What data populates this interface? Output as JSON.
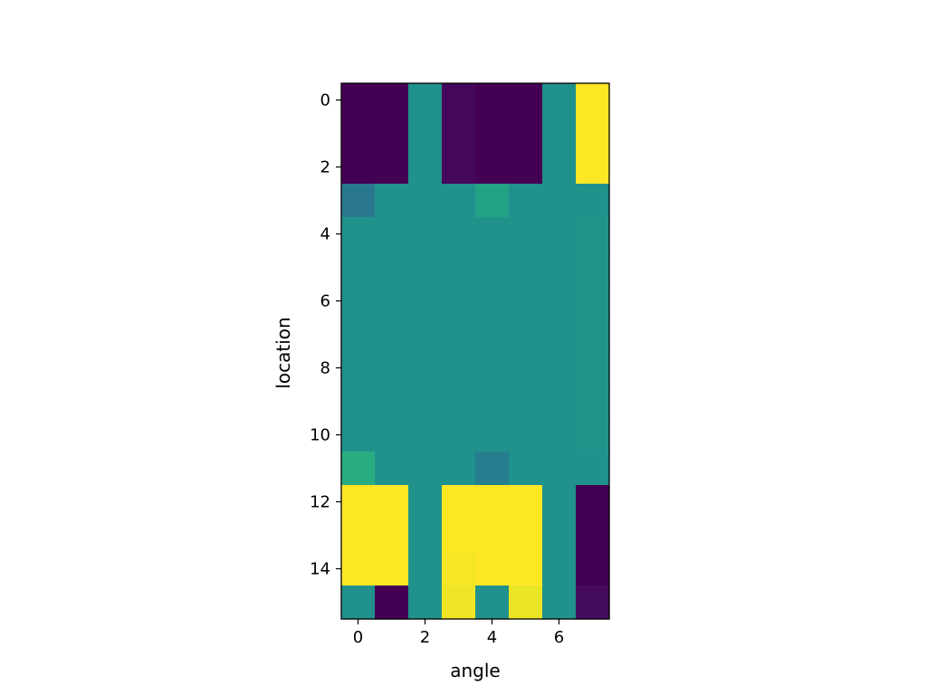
{
  "chart_data": {
    "type": "heatmap",
    "title": "",
    "xlabel": "angle",
    "ylabel": "location",
    "colormap": "viridis",
    "x_ticks": [
      0,
      2,
      4,
      6
    ],
    "y_ticks": [
      0,
      2,
      4,
      6,
      8,
      10,
      12,
      14
    ],
    "xlim": [
      -0.5,
      7.5
    ],
    "ylim": [
      15.5,
      -0.5
    ],
    "value_range": [
      0.0,
      1.0
    ],
    "values": [
      [
        0.0,
        0.0,
        0.5,
        0.02,
        0.0,
        0.0,
        0.5,
        1.0
      ],
      [
        0.0,
        0.0,
        0.5,
        0.02,
        0.0,
        0.0,
        0.5,
        1.0
      ],
      [
        0.0,
        0.0,
        0.5,
        0.02,
        0.0,
        0.0,
        0.5,
        1.0
      ],
      [
        0.4,
        0.5,
        0.5,
        0.5,
        0.58,
        0.5,
        0.5,
        0.5
      ],
      [
        0.5,
        0.5,
        0.5,
        0.5,
        0.5,
        0.5,
        0.5,
        0.51
      ],
      [
        0.5,
        0.5,
        0.5,
        0.5,
        0.5,
        0.5,
        0.5,
        0.51
      ],
      [
        0.5,
        0.5,
        0.5,
        0.5,
        0.5,
        0.5,
        0.5,
        0.51
      ],
      [
        0.5,
        0.5,
        0.5,
        0.5,
        0.5,
        0.5,
        0.5,
        0.51
      ],
      [
        0.5,
        0.5,
        0.5,
        0.5,
        0.5,
        0.5,
        0.5,
        0.51
      ],
      [
        0.5,
        0.5,
        0.5,
        0.5,
        0.5,
        0.5,
        0.5,
        0.51
      ],
      [
        0.5,
        0.5,
        0.5,
        0.5,
        0.5,
        0.5,
        0.5,
        0.51
      ],
      [
        0.62,
        0.5,
        0.5,
        0.5,
        0.42,
        0.5,
        0.5,
        0.5
      ],
      [
        1.0,
        1.0,
        0.5,
        1.0,
        1.0,
        1.0,
        0.5,
        0.0
      ],
      [
        1.0,
        1.0,
        0.5,
        1.0,
        1.0,
        1.0,
        0.5,
        0.0
      ],
      [
        1.0,
        1.0,
        0.5,
        0.99,
        1.0,
        1.0,
        0.5,
        0.0
      ],
      [
        0.5,
        0.0,
        0.5,
        0.98,
        0.5,
        0.97,
        0.5,
        0.03
      ]
    ]
  }
}
